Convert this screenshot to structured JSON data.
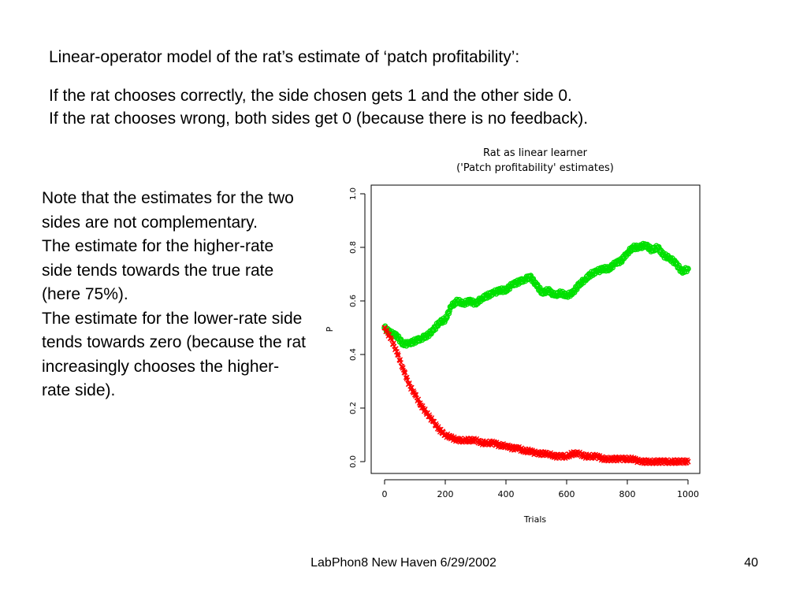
{
  "slide": {
    "title": "Linear-operator model of the rat’s estimate of ‘patch profitability’:",
    "intro_lines": [
      "If the rat chooses correctly, the side chosen gets 1 and the other side 0.",
      "If the rat chooses wrong, both sides get 0 (because there is no feedback)."
    ],
    "note_paragraphs": [
      "Note that the estimates for the two sides are not complementary.",
      "The estimate for the higher-rate side tends towards the true rate (here 75%).",
      "The estimate for the lower-rate side tends towards zero (because the rat increasingly chooses the higher-rate side)."
    ],
    "footer": "LabPhon8 New Haven 6/29/2002",
    "page_number": "40"
  },
  "chart_data": {
    "type": "scatter",
    "title": "Rat as linear learner",
    "subtitle": "('Patch profitability' estimates)",
    "xlabel": "Trials",
    "ylabel": "P",
    "xlim": [
      0,
      1000
    ],
    "ylim": [
      0.0,
      1.0
    ],
    "x_ticks": [
      "0",
      "200",
      "400",
      "600",
      "800",
      "1000"
    ],
    "y_ticks": [
      "0.0",
      "0.2",
      "0.4",
      "0.6",
      "0.8",
      "1.0"
    ],
    "grid": false,
    "series": [
      {
        "color": "#00e000",
        "marker": "circle",
        "x": [
          0,
          20,
          40,
          60,
          80,
          100,
          120,
          140,
          160,
          180,
          200,
          220,
          240,
          260,
          280,
          300,
          320,
          340,
          360,
          380,
          400,
          420,
          440,
          460,
          480,
          500,
          520,
          540,
          560,
          580,
          600,
          620,
          640,
          660,
          680,
          700,
          720,
          740,
          760,
          780,
          800,
          820,
          840,
          860,
          880,
          900,
          920,
          940,
          960,
          980,
          1000
        ],
        "y": [
          0.5,
          0.48,
          0.47,
          0.44,
          0.44,
          0.45,
          0.46,
          0.47,
          0.49,
          0.52,
          0.53,
          0.58,
          0.6,
          0.59,
          0.6,
          0.59,
          0.61,
          0.62,
          0.63,
          0.64,
          0.64,
          0.66,
          0.67,
          0.68,
          0.69,
          0.66,
          0.63,
          0.64,
          0.62,
          0.63,
          0.62,
          0.63,
          0.66,
          0.68,
          0.7,
          0.71,
          0.72,
          0.72,
          0.74,
          0.75,
          0.78,
          0.8,
          0.8,
          0.81,
          0.79,
          0.8,
          0.77,
          0.76,
          0.74,
          0.71,
          0.72
        ]
      },
      {
        "color": "#ff0000",
        "marker": "x",
        "x": [
          0,
          20,
          40,
          60,
          80,
          100,
          120,
          140,
          160,
          180,
          200,
          220,
          240,
          260,
          280,
          300,
          320,
          340,
          360,
          380,
          400,
          420,
          440,
          460,
          480,
          500,
          520,
          540,
          560,
          580,
          600,
          620,
          640,
          660,
          680,
          700,
          720,
          740,
          760,
          780,
          800,
          820,
          840,
          860,
          880,
          900,
          920,
          940,
          960,
          980,
          1000
        ],
        "y": [
          0.5,
          0.46,
          0.41,
          0.35,
          0.29,
          0.25,
          0.21,
          0.18,
          0.15,
          0.12,
          0.1,
          0.09,
          0.08,
          0.08,
          0.08,
          0.08,
          0.07,
          0.07,
          0.07,
          0.06,
          0.06,
          0.05,
          0.05,
          0.04,
          0.04,
          0.03,
          0.03,
          0.03,
          0.02,
          0.02,
          0.02,
          0.03,
          0.03,
          0.02,
          0.02,
          0.02,
          0.01,
          0.01,
          0.01,
          0.01,
          0.01,
          0.01,
          0.0,
          0.0,
          0.0,
          0.0,
          0.0,
          0.0,
          0.0,
          0.0,
          0.0
        ]
      }
    ]
  }
}
